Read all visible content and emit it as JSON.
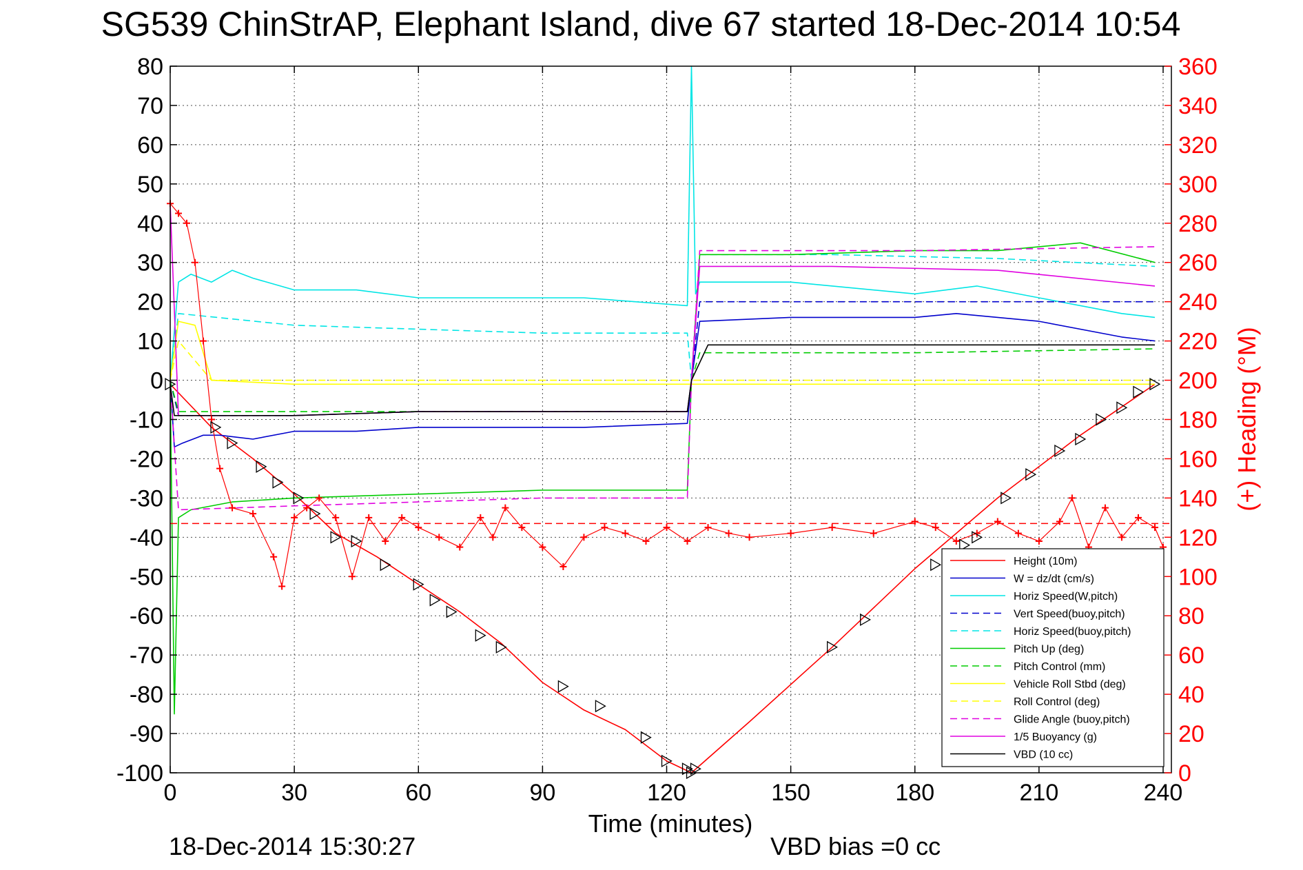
{
  "chart_data": {
    "type": "line",
    "title": "SG539 ChinStrAP, Elephant Island, dive 67 started 18-Dec-2014 10:54",
    "xlabel": "Time (minutes)",
    "ylabel_right": "(+) Heading (°M)",
    "footer_left": "18-Dec-2014 15:30:27",
    "footer_right": "VBD bias =0 cc",
    "xlim": [
      0,
      242
    ],
    "ylim": [
      -100,
      80
    ],
    "ylim_right": [
      0,
      360
    ],
    "x_ticks": [
      0,
      30,
      60,
      90,
      120,
      150,
      180,
      210,
      240
    ],
    "y_ticks": [
      80,
      70,
      60,
      50,
      40,
      30,
      20,
      10,
      0,
      -10,
      -20,
      -30,
      -40,
      -50,
      -60,
      -70,
      -80,
      -90,
      -100
    ],
    "y_ticks_right": [
      360,
      340,
      320,
      300,
      280,
      260,
      240,
      220,
      200,
      180,
      160,
      140,
      120,
      100,
      80,
      60,
      40,
      20,
      0
    ],
    "grid": true,
    "legend_position": "lower-right",
    "right_axis_color": "#ff0000",
    "series": [
      {
        "name": "Height (10m)",
        "color": "#ff0000",
        "dash": "solid",
        "x": [
          0,
          10,
          20,
          30,
          40,
          50,
          60,
          70,
          80,
          90,
          100,
          110,
          120,
          126,
          140,
          160,
          180,
          200,
          220,
          238
        ],
        "values": [
          -1,
          -12,
          -20,
          -29,
          -39,
          -45,
          -52,
          -59,
          -67,
          -77,
          -84,
          -89,
          -97,
          -100,
          -87,
          -68,
          -48,
          -30,
          -14,
          -1
        ]
      },
      {
        "name": "W = dz/dt (cm/s)",
        "color": "#0000cc",
        "dash": "solid",
        "x": [
          0,
          1,
          3,
          8,
          12,
          20,
          30,
          45,
          60,
          80,
          100,
          125,
          126,
          128,
          150,
          180,
          190,
          210,
          230,
          238
        ],
        "values": [
          0,
          -17,
          -16,
          -14,
          -14,
          -15,
          -13,
          -13,
          -12,
          -12,
          -12,
          -11,
          0,
          15,
          16,
          16,
          17,
          15,
          11,
          10
        ]
      },
      {
        "name": "Horiz Speed(W,pitch)",
        "color": "#00e5e5",
        "dash": "solid",
        "x": [
          0,
          2,
          5,
          10,
          15,
          20,
          30,
          45,
          60,
          80,
          100,
          125,
          126,
          127,
          128,
          150,
          180,
          195,
          210,
          230,
          238
        ],
        "values": [
          0,
          25,
          27,
          25,
          28,
          26,
          23,
          23,
          21,
          21,
          21,
          19,
          80,
          22,
          25,
          25,
          22,
          24,
          21,
          17,
          16
        ]
      },
      {
        "name": "Vert Speed(buoy,pitch)",
        "color": "#0000cc",
        "dash": "dashed",
        "x": [
          0,
          2,
          30,
          60,
          90,
          125,
          126,
          128,
          160,
          200,
          238
        ],
        "values": [
          0,
          -9,
          -9,
          -8,
          -8,
          -8,
          0,
          20,
          20,
          20,
          20
        ]
      },
      {
        "name": "Horiz Speed(buoy,pitch)",
        "color": "#00e5e5",
        "dash": "dashed",
        "x": [
          0,
          2,
          30,
          60,
          90,
          125,
          126,
          128,
          160,
          200,
          238
        ],
        "values": [
          0,
          17,
          14,
          13,
          12,
          12,
          0,
          32,
          32,
          31,
          29
        ]
      },
      {
        "name": "Pitch Up (deg)",
        "color": "#00cc00",
        "dash": "solid",
        "x": [
          0,
          1,
          2,
          5,
          15,
          30,
          60,
          90,
          125,
          126,
          128,
          150,
          180,
          200,
          220,
          238
        ],
        "values": [
          0,
          -85,
          -35,
          -33,
          -31,
          -30,
          -29,
          -28,
          -28,
          0,
          32,
          32,
          33,
          33,
          35,
          30
        ]
      },
      {
        "name": "Pitch Control (mm)",
        "color": "#00cc00",
        "dash": "dashed",
        "x": [
          0,
          2,
          60,
          125,
          126,
          128,
          180,
          238
        ],
        "values": [
          0,
          -8,
          -8,
          -8,
          0,
          7,
          7,
          8
        ]
      },
      {
        "name": "Vehicle Roll Stbd (deg)",
        "color": "#ffff00",
        "dash": "solid",
        "x": [
          0,
          2,
          6,
          10,
          30,
          60,
          90,
          125,
          126,
          128,
          160,
          200,
          238
        ],
        "values": [
          0,
          15,
          14,
          0,
          -1,
          -1,
          -1,
          -1,
          -1,
          -1,
          -1,
          -1,
          -1
        ]
      },
      {
        "name": "Roll Control (deg)",
        "color": "#ffff00",
        "dash": "dashed",
        "x": [
          0,
          2,
          10,
          60,
          125,
          126,
          128,
          180,
          238
        ],
        "values": [
          0,
          10,
          0,
          0,
          0,
          0,
          0,
          0,
          0
        ]
      },
      {
        "name": "Glide Angle (buoy,pitch)",
        "color": "#e000e0",
        "dash": "dashed",
        "x": [
          0,
          2,
          30,
          60,
          90,
          125,
          126,
          128,
          180,
          238
        ],
        "values": [
          0,
          -33,
          -32,
          -31,
          -30,
          -30,
          0,
          33,
          33,
          34
        ]
      },
      {
        "name": "1/5 Buoyancy (g)",
        "color": "#e000e0",
        "dash": "solid",
        "x": [
          0,
          2,
          30,
          60,
          90,
          125,
          126,
          128,
          160,
          200,
          238
        ],
        "values": [
          45,
          -9,
          -9,
          -8,
          -8,
          -8,
          0,
          29,
          29,
          28,
          24
        ]
      },
      {
        "name": "VBD (10 cc)",
        "color": "#000000",
        "dash": "solid",
        "x": [
          0,
          1,
          2,
          30,
          60,
          90,
          125,
          126,
          130,
          160,
          200,
          238
        ],
        "values": [
          -1,
          -9,
          -9,
          -9,
          -8,
          -8,
          -8,
          0,
          9,
          9,
          9,
          9
        ]
      }
    ],
    "heading_series": {
      "color": "#ff0000",
      "marker": "+",
      "axis": "right",
      "x": [
        0,
        2,
        4,
        6,
        8,
        10,
        12,
        15,
        20,
        25,
        27,
        30,
        33,
        36,
        40,
        44,
        48,
        52,
        56,
        60,
        65,
        70,
        75,
        78,
        81,
        85,
        90,
        95,
        100,
        105,
        110,
        115,
        120,
        125,
        130,
        135,
        140,
        150,
        160,
        170,
        180,
        185,
        190,
        195,
        200,
        205,
        210,
        215,
        218,
        222,
        226,
        230,
        234,
        238,
        240
      ],
      "values": [
        290,
        285,
        280,
        260,
        220,
        180,
        155,
        135,
        132,
        110,
        95,
        130,
        135,
        140,
        130,
        100,
        130,
        118,
        130,
        125,
        120,
        115,
        130,
        120,
        135,
        125,
        115,
        105,
        120,
        125,
        122,
        118,
        125,
        118,
        125,
        122,
        120,
        122,
        125,
        122,
        128,
        125,
        118,
        122,
        128,
        122,
        118,
        128,
        140,
        115,
        135,
        120,
        130,
        125,
        115
      ]
    },
    "heading_mean_deg": 127,
    "depth_markers": {
      "marker": "triangle",
      "x": [
        0,
        11,
        15,
        22,
        26,
        31,
        35,
        40,
        45,
        52,
        60,
        64,
        68,
        75,
        80,
        95,
        104,
        115,
        120,
        125,
        126,
        127,
        160,
        168,
        185,
        192,
        195,
        202,
        208,
        215,
        220,
        225,
        230,
        234,
        238
      ],
      "values": [
        -1,
        -12,
        -16,
        -22,
        -26,
        -30,
        -34,
        -40,
        -41,
        -47,
        -52,
        -56,
        -59,
        -65,
        -68,
        -78,
        -83,
        -91,
        -97,
        -99,
        -100,
        -99,
        -68,
        -61,
        -47,
        -42,
        -40,
        -30,
        -24,
        -18,
        -15,
        -10,
        -7,
        -3,
        -1
      ]
    }
  }
}
